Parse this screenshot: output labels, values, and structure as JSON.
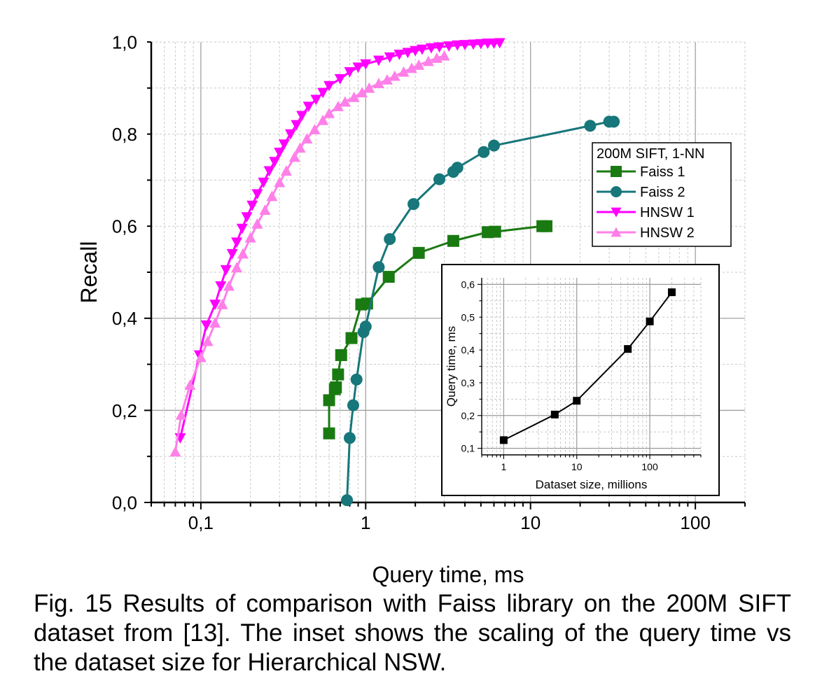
{
  "figure": {
    "caption": "Fig. 15 Results of comparison with Faiss library on the 200M SIFT dataset from [13]. The inset shows the scaling of the query time vs the dataset size for Hierarchical NSW."
  },
  "chart_data": [
    {
      "type": "line",
      "xlabel": "Query time, ms",
      "ylabel": "Recall",
      "xscale": "log",
      "xlim": [
        0.05,
        200
      ],
      "ylim": [
        0.0,
        1.0
      ],
      "x_ticks": [
        0.1,
        1,
        10,
        100
      ],
      "x_tick_labels": [
        "0,1",
        "1",
        "10",
        "100"
      ],
      "y_ticks": [
        0.0,
        0.2,
        0.4,
        0.6,
        0.8,
        1.0
      ],
      "y_tick_labels": [
        "0,0",
        "0,2",
        "0,4",
        "0,6",
        "0,8",
        "1,0"
      ],
      "grid": true,
      "legend": {
        "title": "200M SIFT, 1-NN",
        "placement": "upper-right"
      },
      "series": [
        {
          "name": "Faiss 1",
          "color": "#1a7a12",
          "marker": "square",
          "x": [
            0.6,
            0.6,
            0.65,
            0.66,
            0.68,
            0.71,
            0.82,
            0.94,
            1.02,
            1.38,
            2.1,
            3.4,
            5.5,
            6.1,
            11.8,
            12.5
          ],
          "y": [
            0.15,
            0.222,
            0.246,
            0.25,
            0.278,
            0.32,
            0.357,
            0.43,
            0.432,
            0.49,
            0.542,
            0.568,
            0.587,
            0.588,
            0.6,
            0.6
          ]
        },
        {
          "name": "Faiss 2",
          "color": "#17777a",
          "marker": "circle",
          "x": [
            0.77,
            0.8,
            0.84,
            0.88,
            0.97,
            1.0,
            1.2,
            1.4,
            1.95,
            2.8,
            3.4,
            3.6,
            5.2,
            6.0,
            23.0,
            30.0,
            32.0
          ],
          "y": [
            0.005,
            0.14,
            0.211,
            0.267,
            0.37,
            0.382,
            0.511,
            0.572,
            0.648,
            0.702,
            0.718,
            0.727,
            0.761,
            0.775,
            0.818,
            0.827,
            0.827
          ]
        },
        {
          "name": "HNSW 1",
          "color": "#ff00ff",
          "marker": "triangle-down",
          "x": [
            0.075,
            0.098,
            0.108,
            0.122,
            0.132,
            0.142,
            0.155,
            0.165,
            0.178,
            0.19,
            0.205,
            0.22,
            0.24,
            0.26,
            0.28,
            0.3,
            0.32,
            0.35,
            0.38,
            0.41,
            0.45,
            0.5,
            0.55,
            0.6,
            0.7,
            0.8,
            0.9,
            1.0,
            1.2,
            1.4,
            1.6,
            1.8,
            2.0,
            2.2,
            2.5,
            2.8,
            3.2,
            3.6,
            4.0,
            4.5,
            5.0,
            5.5,
            6.0,
            6.5
          ],
          "y": [
            0.14,
            0.32,
            0.385,
            0.43,
            0.47,
            0.505,
            0.54,
            0.565,
            0.595,
            0.62,
            0.645,
            0.67,
            0.695,
            0.72,
            0.74,
            0.76,
            0.778,
            0.8,
            0.82,
            0.84,
            0.86,
            0.875,
            0.89,
            0.905,
            0.92,
            0.935,
            0.945,
            0.952,
            0.96,
            0.967,
            0.973,
            0.977,
            0.981,
            0.984,
            0.987,
            0.989,
            0.991,
            0.993,
            0.994,
            0.995,
            0.996,
            0.997,
            0.997,
            0.998
          ]
        },
        {
          "name": "HNSW 2",
          "color": "#ff7fe8",
          "marker": "triangle-up",
          "x": [
            0.07,
            0.076,
            0.086,
            0.1,
            0.11,
            0.122,
            0.135,
            0.148,
            0.165,
            0.18,
            0.2,
            0.22,
            0.245,
            0.27,
            0.3,
            0.33,
            0.37,
            0.4,
            0.44,
            0.49,
            0.55,
            0.6,
            0.68,
            0.75,
            0.85,
            0.95,
            1.05,
            1.2,
            1.35,
            1.5,
            1.7,
            1.9,
            2.1,
            2.4,
            2.7,
            3.0
          ],
          "y": [
            0.11,
            0.19,
            0.255,
            0.315,
            0.35,
            0.39,
            0.43,
            0.47,
            0.51,
            0.54,
            0.575,
            0.605,
            0.635,
            0.665,
            0.695,
            0.72,
            0.75,
            0.77,
            0.79,
            0.81,
            0.83,
            0.845,
            0.86,
            0.87,
            0.88,
            0.89,
            0.9,
            0.91,
            0.918,
            0.926,
            0.935,
            0.943,
            0.95,
            0.958,
            0.965,
            0.97
          ]
        }
      ]
    },
    {
      "type": "line",
      "xlabel": "Dataset size, millions",
      "ylabel": "Query time, ms",
      "xscale": "log",
      "xlim": [
        0.5,
        500
      ],
      "ylim": [
        0.08,
        0.62
      ],
      "x_ticks": [
        1,
        10,
        100
      ],
      "x_tick_labels": [
        "1",
        "10",
        "100"
      ],
      "y_ticks": [
        0.1,
        0.2,
        0.3,
        0.4,
        0.5,
        0.6
      ],
      "y_tick_labels": [
        "0,1",
        "0,2",
        "0,3",
        "0,4",
        "0,5",
        "0,6"
      ],
      "grid": true,
      "series": [
        {
          "color": "#000000",
          "marker": "square",
          "x": [
            1,
            5,
            10,
            50,
            100,
            200
          ],
          "y": [
            0.125,
            0.203,
            0.245,
            0.403,
            0.487,
            0.576
          ]
        }
      ]
    }
  ]
}
